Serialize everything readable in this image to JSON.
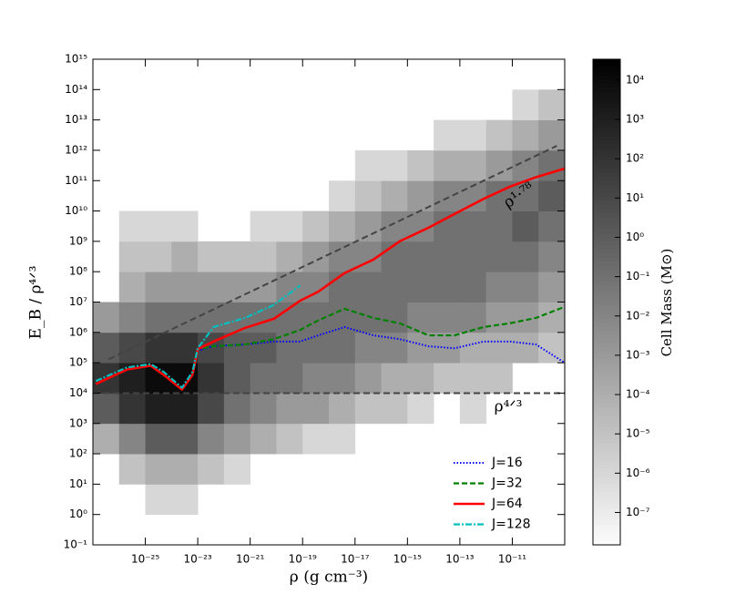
{
  "chart_data": {
    "type": "heatmap_lines",
    "xlabel": "ρ (g cm⁻³)",
    "ylabel": "E_B / ρ⁴ᐟ³",
    "xscale": "log",
    "yscale": "log",
    "xlim": [
      1e-27,
      1e-09
    ],
    "ylim": [
      0.1,
      1000000000000000.0
    ],
    "xticks": [
      {
        "value": 1e-25,
        "label": "10⁻²⁵"
      },
      {
        "value": 1e-23,
        "label": "10⁻²³"
      },
      {
        "value": 1e-21,
        "label": "10⁻²¹"
      },
      {
        "value": 1e-19,
        "label": "10⁻¹⁹"
      },
      {
        "value": 1e-17,
        "label": "10⁻¹⁷"
      },
      {
        "value": 1e-15,
        "label": "10⁻¹⁵"
      },
      {
        "value": 1e-13,
        "label": "10⁻¹³"
      },
      {
        "value": 1e-11,
        "label": "10⁻¹¹"
      }
    ],
    "yticks": [
      {
        "value": 1000000000000000.0,
        "label": "10¹⁵"
      },
      {
        "value": 100000000000000.0,
        "label": "10¹⁴"
      },
      {
        "value": 10000000000000.0,
        "label": "10¹³"
      },
      {
        "value": 1000000000000.0,
        "label": "10¹²"
      },
      {
        "value": 100000000000.0,
        "label": "10¹¹"
      },
      {
        "value": 10000000000.0,
        "label": "10¹⁰"
      },
      {
        "value": 1000000000.0,
        "label": "10⁹"
      },
      {
        "value": 100000000.0,
        "label": "10⁸"
      },
      {
        "value": 10000000.0,
        "label": "10⁷"
      },
      {
        "value": 1000000.0,
        "label": "10⁶"
      },
      {
        "value": 100000.0,
        "label": "10⁵"
      },
      {
        "value": 10000.0,
        "label": "10⁴"
      },
      {
        "value": 1000.0,
        "label": "10³"
      },
      {
        "value": 100.0,
        "label": "10²"
      },
      {
        "value": 10.0,
        "label": "10¹"
      },
      {
        "value": 1,
        "label": "10⁰"
      },
      {
        "value": 0.1,
        "label": "10⁻¹"
      }
    ],
    "heatmap": {
      "xbins": [
        1e-27,
        1e-26,
        1e-25,
        1e-24,
        1e-23,
        1e-22,
        1e-21,
        1e-20,
        1e-19,
        1e-18,
        1e-17,
        1e-16,
        1e-15,
        1e-14,
        1e-13,
        1e-12,
        1e-11,
        1e-10,
        1e-09
      ],
      "ybins": [
        0.1,
        1,
        10.0,
        100.0,
        1000.0,
        10000.0,
        100000.0,
        1000000.0,
        10000000.0,
        100000000.0,
        1000000000.0,
        10000000000.0,
        100000000000.0,
        1000000000000.0,
        10000000000000.0,
        100000000000000.0,
        1000000000000000.0
      ],
      "z": [
        [
          null,
          null,
          null,
          0.0001,
          1,
          100.0,
          1,
          0.001,
          null,
          null,
          null,
          null,
          null,
          null,
          null,
          null
        ],
        [
          null,
          null,
          1e-05,
          0.01,
          100.0,
          1000.0,
          10.0,
          0.01,
          0.0001,
          1e-05,
          1e-06,
          null,
          null,
          null,
          null,
          null
        ],
        [
          null,
          1e-06,
          0.0001,
          1,
          1000.0,
          10000.0,
          100.0,
          0.1,
          0.001,
          1e-05,
          1e-06,
          null,
          null,
          null,
          null,
          null
        ],
        [
          null,
          1e-06,
          0.0001,
          1,
          1000.0,
          10000.0,
          100.0,
          0.1,
          0.001,
          0.0001,
          1e-06,
          null,
          null,
          null,
          null,
          null
        ],
        [
          null,
          null,
          1e-05,
          0.01,
          10.0,
          100.0,
          10.0,
          0.1,
          0.001,
          1e-05,
          null,
          null,
          null,
          null,
          null,
          null
        ],
        [
          null,
          null,
          1e-06,
          0.001,
          0.1,
          1,
          1,
          0.1,
          0.001,
          1e-05,
          null,
          null,
          null,
          null,
          null,
          null
        ],
        [
          null,
          null,
          null,
          0.0001,
          0.01,
          0.1,
          1,
          0.1,
          0.001,
          1e-05,
          1e-06,
          null,
          null,
          null,
          null,
          null
        ],
        [
          null,
          null,
          null,
          1e-05,
          0.001,
          0.1,
          0.1,
          0.1,
          0.01,
          0.0001,
          1e-06,
          null,
          null,
          null,
          null,
          null
        ],
        [
          null,
          null,
          null,
          1e-06,
          0.001,
          0.01,
          0.1,
          0.1,
          0.01,
          0.001,
          1e-05,
          null,
          null,
          null,
          null,
          null
        ],
        [
          null,
          null,
          null,
          1e-06,
          0.0001,
          0.01,
          0.1,
          0.1,
          0.1,
          0.01,
          0.0001,
          1e-06,
          null,
          null,
          null,
          null
        ],
        [
          null,
          null,
          null,
          null,
          1e-05,
          0.001,
          0.01,
          0.1,
          0.1,
          0.01,
          0.001,
          1e-05,
          1e-06,
          null,
          null,
          null
        ],
        [
          null,
          null,
          null,
          null,
          1e-05,
          0.0001,
          0.01,
          0.1,
          0.1,
          0.1,
          0.01,
          0.0001,
          1e-06,
          null,
          null,
          null
        ],
        [
          null,
          null,
          null,
          null,
          1e-06,
          0.0001,
          0.001,
          0.01,
          0.1,
          0.1,
          0.01,
          0.001,
          1e-05,
          null,
          null,
          null
        ],
        [
          null,
          null,
          null,
          null,
          null,
          1e-05,
          0.001,
          0.01,
          0.1,
          0.1,
          0.1,
          0.01,
          0.0001,
          1e-06,
          null,
          null
        ],
        [
          null,
          null,
          null,
          null,
          1e-06,
          1e-05,
          0.0001,
          0.01,
          0.1,
          0.1,
          0.1,
          0.01,
          0.0001,
          1e-06,
          null,
          null
        ],
        [
          null,
          null,
          null,
          null,
          null,
          1e-05,
          0.0001,
          0.001,
          0.01,
          0.1,
          0.1,
          0.1,
          0.001,
          1e-05,
          null,
          null
        ],
        [
          null,
          null,
          null,
          null,
          null,
          null,
          0.0001,
          0.001,
          0.01,
          0.1,
          1,
          0.1,
          0.01,
          0.0001,
          1e-06,
          null
        ],
        [
          null,
          null,
          null,
          null,
          null,
          null,
          1e-05,
          0.0001,
          0.001,
          0.01,
          0.1,
          1,
          0.1,
          0.001,
          1e-05,
          null
        ]
      ]
    },
    "colorbar_label": "Cell Mass (M⊙)",
    "zscale": "log",
    "zlim": [
      1.5e-08,
      34000.0
    ],
    "zticks": [
      {
        "value": 10000.0,
        "label": "10⁴"
      },
      {
        "value": 1000.0,
        "label": "10³"
      },
      {
        "value": 100.0,
        "label": "10²"
      },
      {
        "value": 10.0,
        "label": "10¹"
      },
      {
        "value": 1,
        "label": "10⁰"
      },
      {
        "value": 0.1,
        "label": "10⁻¹"
      },
      {
        "value": 0.01,
        "label": "10⁻²"
      },
      {
        "value": 0.001,
        "label": "10⁻³"
      },
      {
        "value": 0.0001,
        "label": "10⁻⁴"
      },
      {
        "value": 1e-05,
        "label": "10⁻⁵"
      },
      {
        "value": 1e-06,
        "label": "10⁻⁶"
      },
      {
        "value": 1e-07,
        "label": "10⁻⁷"
      }
    ],
    "x": [
      1.3e-27,
      2e-26,
      1.6e-25,
      5e-25,
      2.5e-24,
      6.3e-24,
      1e-23,
      4e-23,
      6.3e-22,
      8e-21,
      8e-20,
      4e-19,
      4e-18,
      5e-17,
      5e-16,
      6.3e-15,
      6.3e-14,
      8e-13,
      8e-12,
      8e-11,
      1e-09
    ],
    "series": [
      {
        "name": "J=16",
        "color": "#0000ff",
        "dash": "dotted",
        "values": [
          20000.0,
          60000.0,
          80000.0,
          40000.0,
          13000.0,
          40000.0,
          250000.0,
          350000.0,
          400000.0,
          500000.0,
          500000.0,
          800000.0,
          1500000.0,
          800000.0,
          600000.0,
          350000.0,
          300000.0,
          500000.0,
          500000.0,
          400000.0,
          100000.0
        ]
      },
      {
        "name": "J=32",
        "color": "#008000",
        "dash": "dashed",
        "values": [
          20000.0,
          60000.0,
          80000.0,
          40000.0,
          13000.0,
          40000.0,
          280000.0,
          350000.0,
          400000.0,
          600000.0,
          1200000.0,
          2500000.0,
          6000000.0,
          3000000.0,
          2000000.0,
          800000.0,
          800000.0,
          1500000.0,
          2000000.0,
          3000000.0,
          7000000.0
        ]
      },
      {
        "name": "J=64",
        "color": "#ff0000",
        "dash": "solid",
        "values": [
          20000.0,
          60000.0,
          80000.0,
          40000.0,
          13000.0,
          40000.0,
          280000.0,
          500000.0,
          1400000.0,
          2800000.0,
          11000000.0,
          22000000.0,
          90000000.0,
          250000000.0,
          1000000000.0,
          2800000000.0,
          8000000000.0,
          25000000000.0,
          63000000000.0,
          130000000000.0,
          250000000000.0
        ]
      },
      {
        "name": "J=128",
        "color": "#00bfbf",
        "dash": "dashdot",
        "values": [
          25000.0,
          70000.0,
          90000.0,
          50000.0,
          15000.0,
          50000.0,
          300000.0,
          1500000.0,
          3000000.0,
          8000000.0,
          35000000.0,
          null,
          null,
          null,
          null,
          null,
          null,
          null,
          null,
          null,
          null
        ]
      }
    ],
    "reference_lines": [
      {
        "label": "ρ¹·⁷⁸",
        "x": [
          4e-27,
          5e-10
        ],
        "values": [
          130000.0,
          1400000000000.0
        ]
      },
      {
        "label": "ρ⁴ᐟ³",
        "x": [
          1e-27,
          1e-09
        ],
        "values": [
          10000.0,
          10000.0
        ]
      }
    ],
    "legend": "lower right"
  }
}
